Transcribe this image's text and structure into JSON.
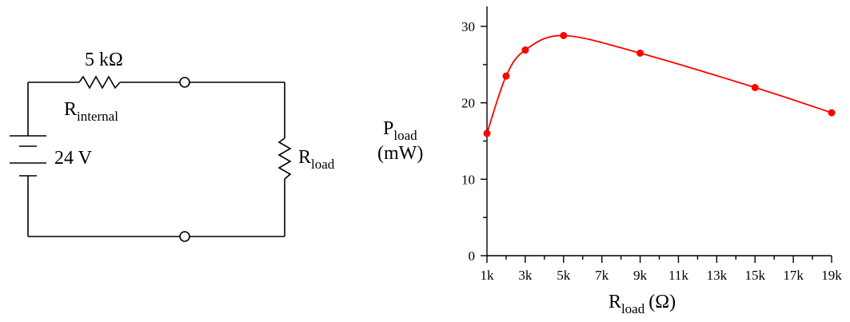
{
  "circuit": {
    "resistor_internal": {
      "value": "5 kΩ",
      "label_main": "R",
      "label_sub": "internal"
    },
    "battery": {
      "voltage": "24 V"
    },
    "resistor_load": {
      "label_main": "R",
      "label_sub": "load"
    }
  },
  "chart_data": {
    "type": "line",
    "ylabel_main": "P",
    "ylabel_sub": "load",
    "ylabel_unit": "(mW)",
    "xlabel_main": "R",
    "xlabel_sub": "load",
    "xlabel_unit": "(Ω)",
    "xlim": [
      1000,
      19000
    ],
    "ylim": [
      0,
      30
    ],
    "x_ticks": [
      1000,
      3000,
      5000,
      7000,
      9000,
      11000,
      13000,
      15000,
      17000,
      19000
    ],
    "x_tick_labels": [
      "1k",
      "3k",
      "5k",
      "7k",
      "9k",
      "11k",
      "13k",
      "15k",
      "17k",
      "19k"
    ],
    "y_ticks": [
      0,
      10,
      20,
      30
    ],
    "y_tick_labels": [
      "0",
      "10",
      "20",
      "30"
    ],
    "grid": false,
    "points": [
      {
        "x": 1000,
        "y": 16.0
      },
      {
        "x": 2000,
        "y": 23.5
      },
      {
        "x": 3000,
        "y": 26.9
      },
      {
        "x": 5000,
        "y": 28.8
      },
      {
        "x": 9000,
        "y": 26.5
      },
      {
        "x": 15000,
        "y": 22.0
      },
      {
        "x": 19000,
        "y": 18.7
      }
    ],
    "colors": {
      "series": "#ff0000",
      "axes": "#000000"
    }
  }
}
